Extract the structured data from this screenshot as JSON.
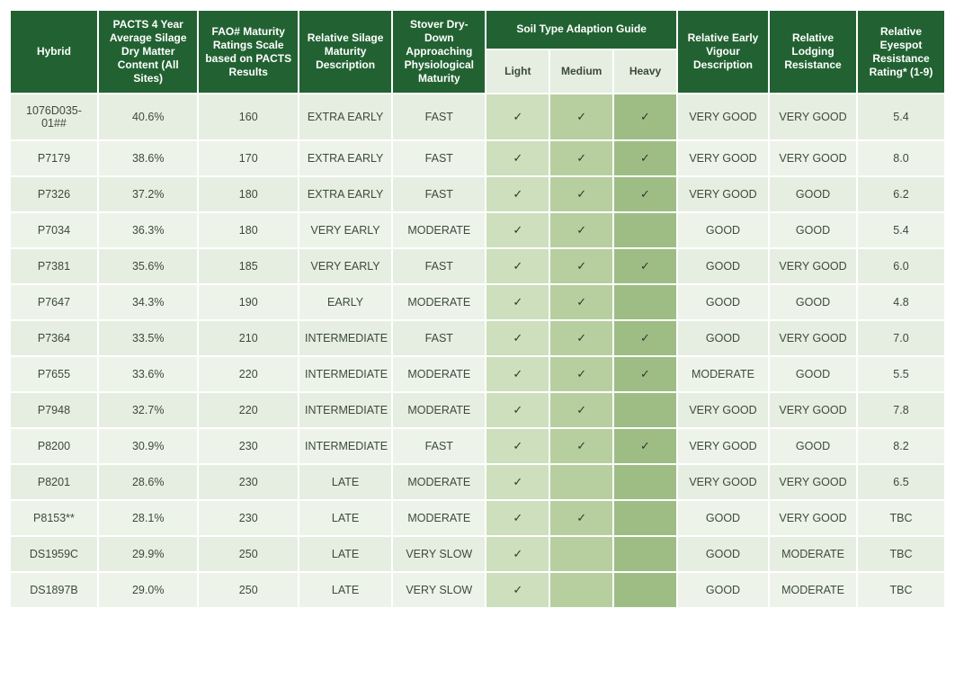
{
  "table": {
    "header_bg": "#226232",
    "header_fg": "#ffffff",
    "row_bg_a": "#e6eee1",
    "row_bg_b": "#eef3ea",
    "soil_light_bg": "#cddfbd",
    "soil_medium_bg": "#b7cf9f",
    "soil_heavy_bg": "#9dbd85",
    "text_color": "#3b4a3b",
    "font_size_header_pt": 9,
    "font_size_body_pt": 9.5,
    "columns": {
      "hybrid": "Hybrid",
      "pacts": "PACTS 4 Year Average Silage Dry Matter Content (All Sites)",
      "fao": "FAO# Maturity Ratings Scale based on PACTS Results",
      "maturity": "Relative Silage Maturity Description",
      "stover": "Stover Dry-Down Approaching Physiological Maturity",
      "soil_group": "Soil Type Adaption Guide",
      "soil_light": "Light",
      "soil_medium": "Medium",
      "soil_heavy": "Heavy",
      "vigour": "Relative Early Vigour Description",
      "lodging": "Relative Lodging Resistance",
      "eyespot": "Relative Eyespot Resistance Rating* (1-9)"
    },
    "check_glyph": "✓",
    "rows": [
      {
        "hybrid": "1076D035-01##",
        "pacts": "40.6%",
        "fao": "160",
        "maturity": "EXTRA EARLY",
        "stover": "FAST",
        "light": true,
        "medium": true,
        "heavy": true,
        "vigour": "VERY GOOD",
        "lodging": "VERY GOOD",
        "eyespot": "5.4"
      },
      {
        "hybrid": "P7179",
        "pacts": "38.6%",
        "fao": "170",
        "maturity": "EXTRA EARLY",
        "stover": "FAST",
        "light": true,
        "medium": true,
        "heavy": true,
        "vigour": "VERY GOOD",
        "lodging": "VERY GOOD",
        "eyespot": "8.0"
      },
      {
        "hybrid": "P7326",
        "pacts": "37.2%",
        "fao": "180",
        "maturity": "EXTRA EARLY",
        "stover": "FAST",
        "light": true,
        "medium": true,
        "heavy": true,
        "vigour": "VERY GOOD",
        "lodging": "GOOD",
        "eyespot": "6.2"
      },
      {
        "hybrid": "P7034",
        "pacts": "36.3%",
        "fao": "180",
        "maturity": "VERY EARLY",
        "stover": "MODERATE",
        "light": true,
        "medium": true,
        "heavy": false,
        "vigour": "GOOD",
        "lodging": "GOOD",
        "eyespot": "5.4"
      },
      {
        "hybrid": "P7381",
        "pacts": "35.6%",
        "fao": "185",
        "maturity": "VERY EARLY",
        "stover": "FAST",
        "light": true,
        "medium": true,
        "heavy": true,
        "vigour": "GOOD",
        "lodging": "VERY GOOD",
        "eyespot": "6.0"
      },
      {
        "hybrid": "P7647",
        "pacts": "34.3%",
        "fao": "190",
        "maturity": "EARLY",
        "stover": "MODERATE",
        "light": true,
        "medium": true,
        "heavy": false,
        "vigour": "GOOD",
        "lodging": "GOOD",
        "eyespot": "4.8"
      },
      {
        "hybrid": "P7364",
        "pacts": "33.5%",
        "fao": "210",
        "maturity": "INTERMEDIATE",
        "stover": "FAST",
        "light": true,
        "medium": true,
        "heavy": true,
        "vigour": "GOOD",
        "lodging": "VERY GOOD",
        "eyespot": "7.0"
      },
      {
        "hybrid": "P7655",
        "pacts": "33.6%",
        "fao": "220",
        "maturity": "INTERMEDIATE",
        "stover": "MODERATE",
        "light": true,
        "medium": true,
        "heavy": true,
        "vigour": "MODERATE",
        "lodging": "GOOD",
        "eyespot": "5.5"
      },
      {
        "hybrid": "P7948",
        "pacts": "32.7%",
        "fao": "220",
        "maturity": "INTERMEDIATE",
        "stover": "MODERATE",
        "light": true,
        "medium": true,
        "heavy": false,
        "vigour": "VERY GOOD",
        "lodging": "VERY GOOD",
        "eyespot": "7.8"
      },
      {
        "hybrid": "P8200",
        "pacts": "30.9%",
        "fao": "230",
        "maturity": "INTERMEDIATE",
        "stover": "FAST",
        "light": true,
        "medium": true,
        "heavy": true,
        "vigour": "VERY GOOD",
        "lodging": "GOOD",
        "eyespot": "8.2"
      },
      {
        "hybrid": "P8201",
        "pacts": "28.6%",
        "fao": "230",
        "maturity": "LATE",
        "stover": "MODERATE",
        "light": true,
        "medium": false,
        "heavy": false,
        "vigour": "VERY GOOD",
        "lodging": "VERY GOOD",
        "eyespot": "6.5"
      },
      {
        "hybrid": "P8153**",
        "pacts": "28.1%",
        "fao": "230",
        "maturity": "LATE",
        "stover": "MODERATE",
        "light": true,
        "medium": true,
        "heavy": false,
        "vigour": "GOOD",
        "lodging": "VERY GOOD",
        "eyespot": "TBC"
      },
      {
        "hybrid": "DS1959C",
        "pacts": "29.9%",
        "fao": "250",
        "maturity": "LATE",
        "stover": "VERY SLOW",
        "light": true,
        "medium": false,
        "heavy": false,
        "vigour": "GOOD",
        "lodging": "MODERATE",
        "eyespot": "TBC"
      },
      {
        "hybrid": "DS1897B",
        "pacts": "29.0%",
        "fao": "250",
        "maturity": "LATE",
        "stover": "VERY SLOW",
        "light": true,
        "medium": false,
        "heavy": false,
        "vigour": "GOOD",
        "lodging": "MODERATE",
        "eyespot": "TBC"
      }
    ]
  }
}
